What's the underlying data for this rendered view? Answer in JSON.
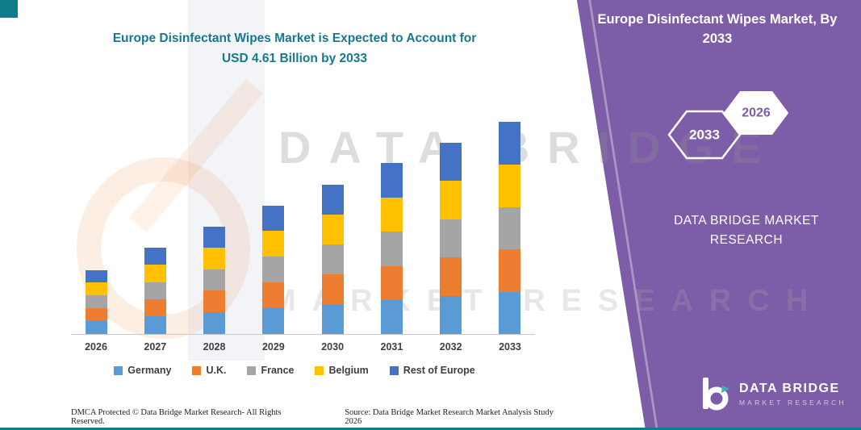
{
  "colors": {
    "teal_accent": "#0E7D8A",
    "purple_panel": "#7D5CA8",
    "title_teal": "#147A8C"
  },
  "left": {
    "title_line1": "Europe Disinfectant Wipes Market is Expected to Account for",
    "title_line2": "USD 4.61 Billion by 2033"
  },
  "right_panel": {
    "title": "Europe Disinfectant Wipes Market, By 2033",
    "badge_back": "2033",
    "badge_front": "2026",
    "brand_name": "DATA BRIDGE MARKET RESEARCH",
    "logo_title": "DATA BRIDGE",
    "logo_subtitle": "MARKET RESEARCH"
  },
  "watermark": {
    "line1": "DATA BRIDGE",
    "line2": "MARKET RESEARCH"
  },
  "footer": {
    "dmca": "DMCA Protected © Data Bridge Market Research-  All Rights Reserved.",
    "source": "Source: Data Bridge Market Research  Market Analysis Study 2026"
  },
  "chart_data": {
    "type": "bar",
    "stacked": true,
    "title": "Europe Disinfectant Wipes Market is Expected to Account for USD 4.61 Billion by 2033",
    "unit": "USD Billion",
    "categories": [
      "2026",
      "2027",
      "2028",
      "2029",
      "2030",
      "2031",
      "2032",
      "2033"
    ],
    "series": [
      {
        "name": "Germany",
        "color": "#5B9BD5",
        "values": [
          0.28,
          0.38,
          0.47,
          0.56,
          0.65,
          0.74,
          0.83,
          0.92
        ]
      },
      {
        "name": "U.K.",
        "color": "#ED7D31",
        "values": [
          0.28,
          0.37,
          0.47,
          0.56,
          0.65,
          0.74,
          0.83,
          0.92
        ]
      },
      {
        "name": "France",
        "color": "#A5A5A5",
        "values": [
          0.28,
          0.38,
          0.47,
          0.56,
          0.65,
          0.74,
          0.83,
          0.92
        ]
      },
      {
        "name": "Belgium",
        "color": "#FFC000",
        "values": [
          0.28,
          0.38,
          0.47,
          0.56,
          0.65,
          0.75,
          0.84,
          0.93
        ]
      },
      {
        "name": "Rest of Europe",
        "color": "#4472C4",
        "values": [
          0.27,
          0.37,
          0.45,
          0.56,
          0.65,
          0.74,
          0.83,
          0.92
        ]
      }
    ],
    "totals": [
      1.39,
      1.88,
      2.33,
      2.8,
      3.25,
      3.71,
      4.16,
      4.61
    ],
    "ylim": [
      0,
      5
    ],
    "grid": false,
    "y_axis_visible": false,
    "legend_position": "bottom"
  }
}
